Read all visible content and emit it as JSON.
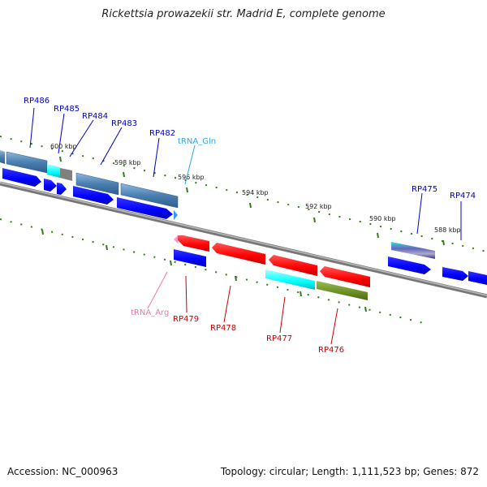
{
  "title": "Rickettsia prowazekii str. Madrid E, complete genome",
  "footer": {
    "accession": "Accession: NC_000963",
    "summary": "Topology: circular; Length: 1,111,523 bp; Genes: 872"
  },
  "colors": {
    "backbone": "#888888",
    "tick": "#2e7d1a",
    "cds": "#0000ff",
    "forward_gene": "#4a7fb0",
    "reverse_gene": "#ff0000",
    "cyan_gene": "#00ffff",
    "olive_gene": "#6b8e23",
    "gray_gene": "#808080",
    "trna": "#3399ff",
    "trna_arg": "#ff99cc",
    "label_forward": "#0000cc",
    "label_reverse": "#cc0000",
    "label_trna_gln": "#33aadd",
    "label_trna_arg": "#ee77aa"
  },
  "scale_labels": [
    "600 kbp",
    "598 kbp",
    "596 kbp",
    "594 kbp",
    "592 kbp",
    "590 kbp",
    "588 kbp"
  ],
  "genes_forward": [
    "RP486",
    "RP485",
    "RP484",
    "RP483",
    "RP482",
    "tRNA_Gln",
    "RP475",
    "RP474"
  ],
  "genes_reverse": [
    "tRNA_Arg",
    "RP479",
    "RP478",
    "RP477",
    "RP476"
  ]
}
